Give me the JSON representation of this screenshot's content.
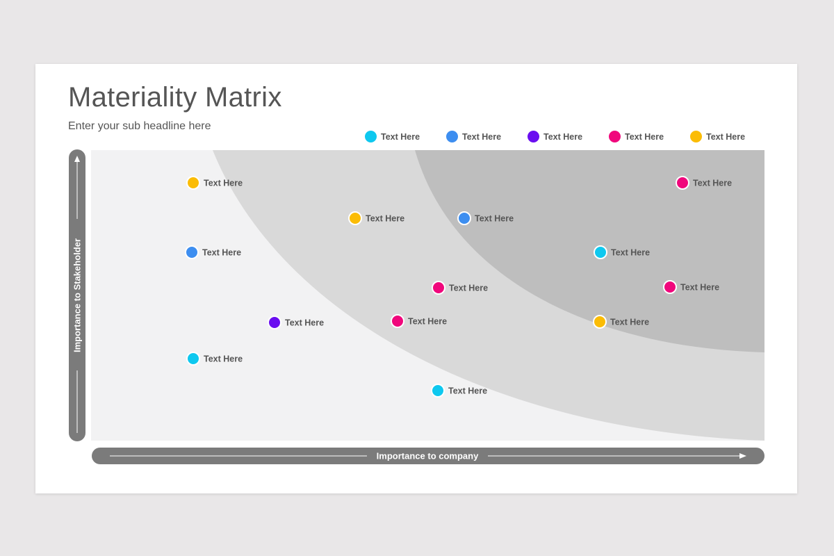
{
  "title": "Materiality Matrix",
  "subtitle": "Enter your sub headline here",
  "colors": {
    "cyan": "#0ec8ef",
    "blue": "#3d8ef0",
    "purple": "#6a0ef0",
    "pink": "#f0077c",
    "yellow": "#fbbc05",
    "zone_low": "#f2f2f3",
    "zone_mid": "#d9d9d9",
    "zone_high": "#bebebe",
    "axis": "#7b7b7b"
  },
  "legend": [
    {
      "label": "Text Here",
      "color": "cyan"
    },
    {
      "label": "Text Here",
      "color": "blue"
    },
    {
      "label": "Text Here",
      "color": "purple"
    },
    {
      "label": "Text Here",
      "color": "pink"
    },
    {
      "label": "Text Here",
      "color": "yellow"
    }
  ],
  "y_axis_label": "Importance to Stakeholder",
  "x_axis_label": "Importance to company",
  "points": [
    {
      "label": "Text Here",
      "color": "yellow"
    },
    {
      "label": "Text Here",
      "color": "pink"
    },
    {
      "label": "Text Here",
      "color": "yellow"
    },
    {
      "label": "Text Here",
      "color": "blue"
    },
    {
      "label": "Text Here",
      "color": "blue"
    },
    {
      "label": "Text Here",
      "color": "cyan"
    },
    {
      "label": "Text Here",
      "color": "pink"
    },
    {
      "label": "Text Here",
      "color": "pink"
    },
    {
      "label": "Text Here",
      "color": "purple"
    },
    {
      "label": "Text Here",
      "color": "pink"
    },
    {
      "label": "Text Here",
      "color": "yellow"
    },
    {
      "label": "Text Here",
      "color": "cyan"
    },
    {
      "label": "Text Here",
      "color": "cyan"
    }
  ]
}
